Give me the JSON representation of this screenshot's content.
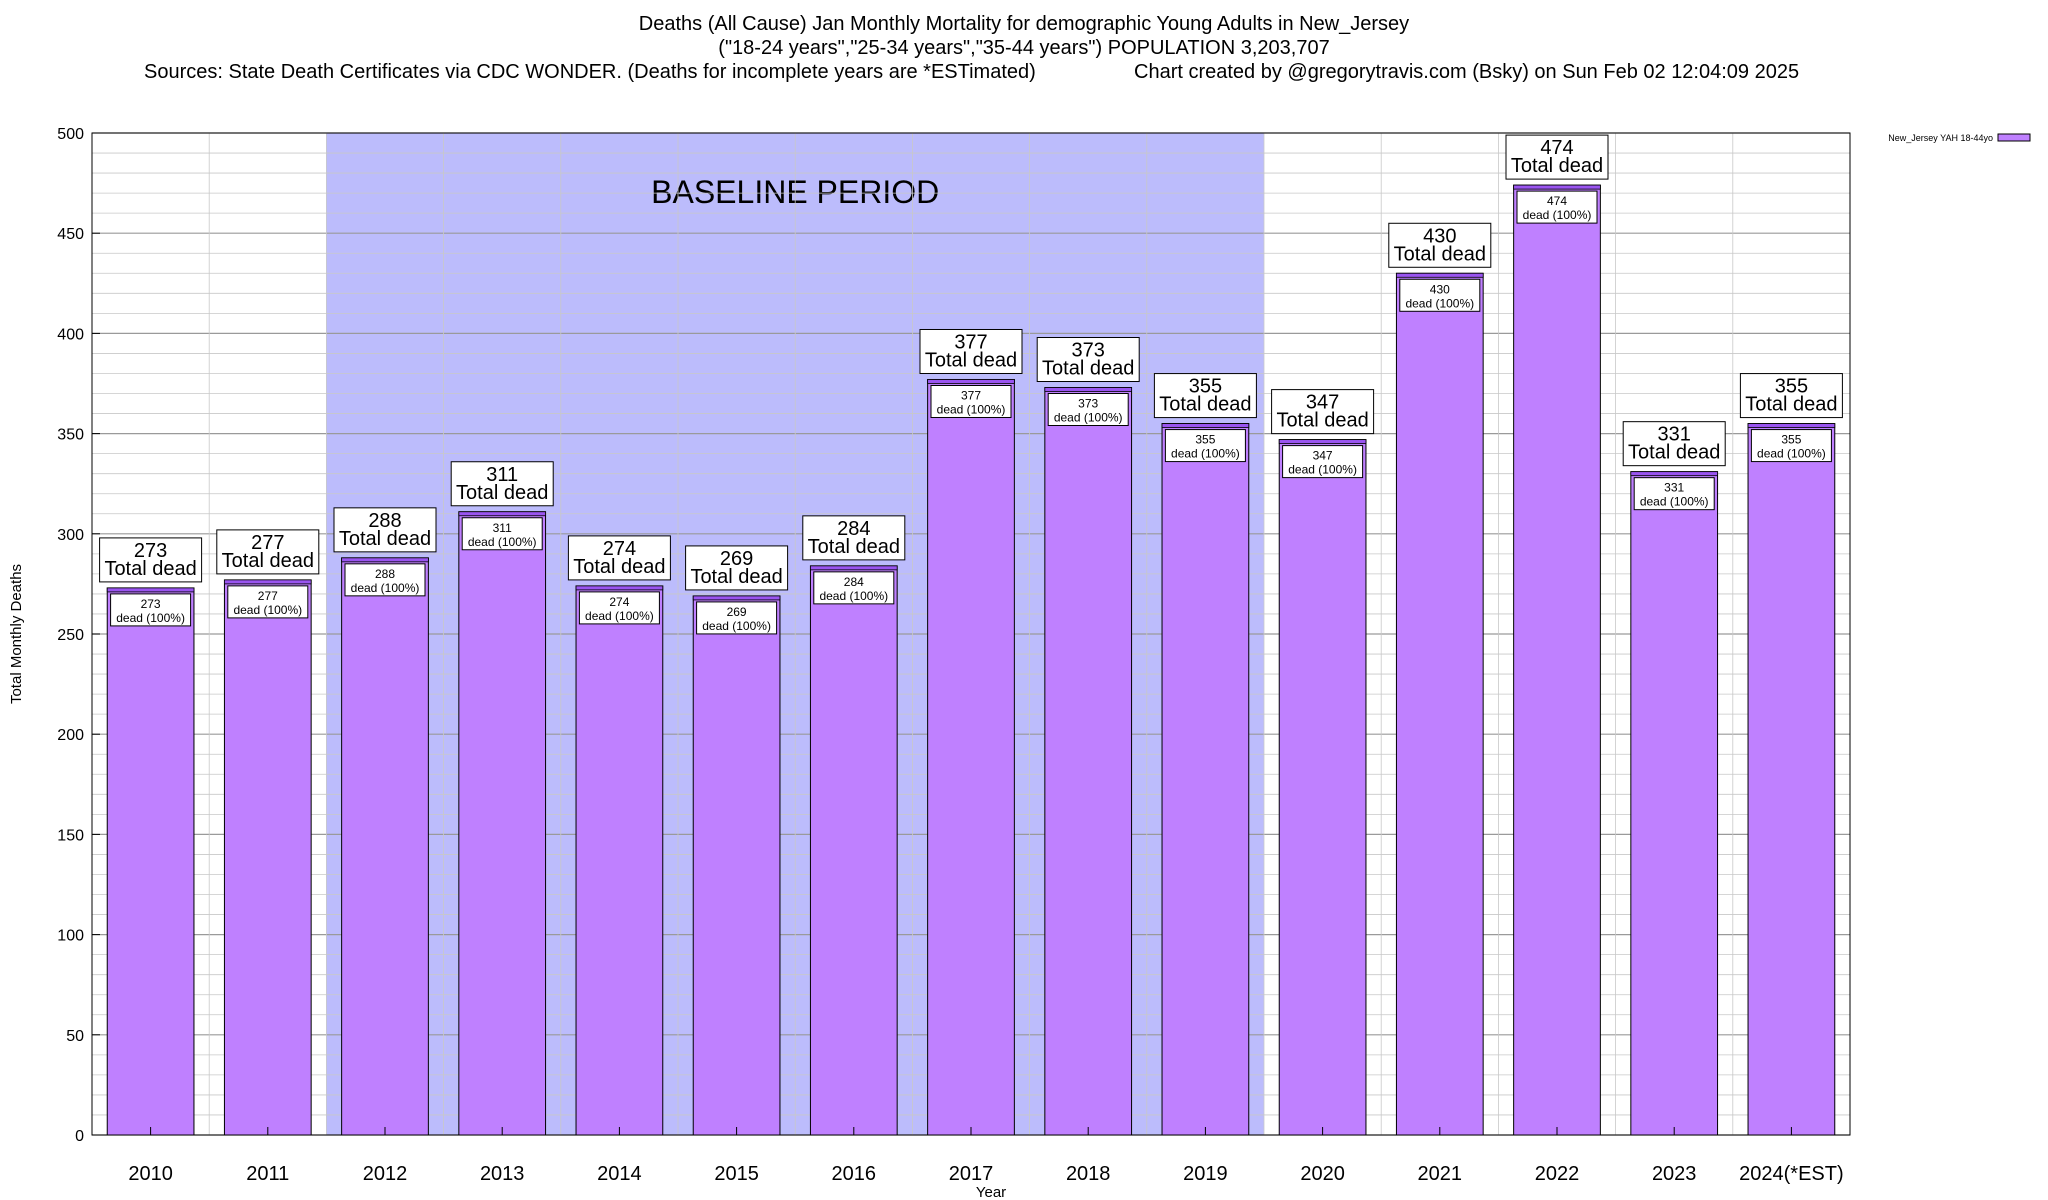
{
  "chart_data": {
    "type": "bar",
    "title": "Deaths (All Cause) Jan Monthly Mortality for demographic Young Adults in New_Jersey",
    "subtitle": "(\"18-24 years\",\"25-34 years\",\"35-44 years\") POPULATION 3,203,707",
    "sources": "Sources: State Death Certificates via CDC WONDER. (Deaths for incomplete years are *ESTimated)",
    "credit": "Chart created by @gregorytravis.com (Bsky) on Sun Feb 02 12:04:09 2025",
    "xlabel": "Year",
    "ylabel": "Total Monthly Deaths",
    "ylim": [
      0,
      500
    ],
    "yticks": [
      0,
      50,
      100,
      150,
      200,
      250,
      300,
      350,
      400,
      450,
      500
    ],
    "categories": [
      "2010",
      "2011",
      "2012",
      "2013",
      "2014",
      "2015",
      "2016",
      "2017",
      "2018",
      "2019",
      "2020",
      "2021",
      "2022",
      "2023",
      "2024(*EST)"
    ],
    "series": [
      {
        "name": "New_Jersey YAH 18-44yo",
        "values": [
          273,
          277,
          288,
          311,
          274,
          269,
          284,
          377,
          373,
          355,
          347,
          430,
          474,
          331,
          355
        ]
      }
    ],
    "total_label": "Total dead",
    "inner_label": "dead (100%)",
    "baseline": {
      "label": "BASELINE PERIOD",
      "from": "2012",
      "to": "2019"
    },
    "legend_position": "top-right",
    "grid": true,
    "colors": {
      "bar": "#bf80ff",
      "bar_top": "#9a55f0",
      "baseline": "#bcbcfc",
      "grid": "#c8c8c8"
    }
  }
}
